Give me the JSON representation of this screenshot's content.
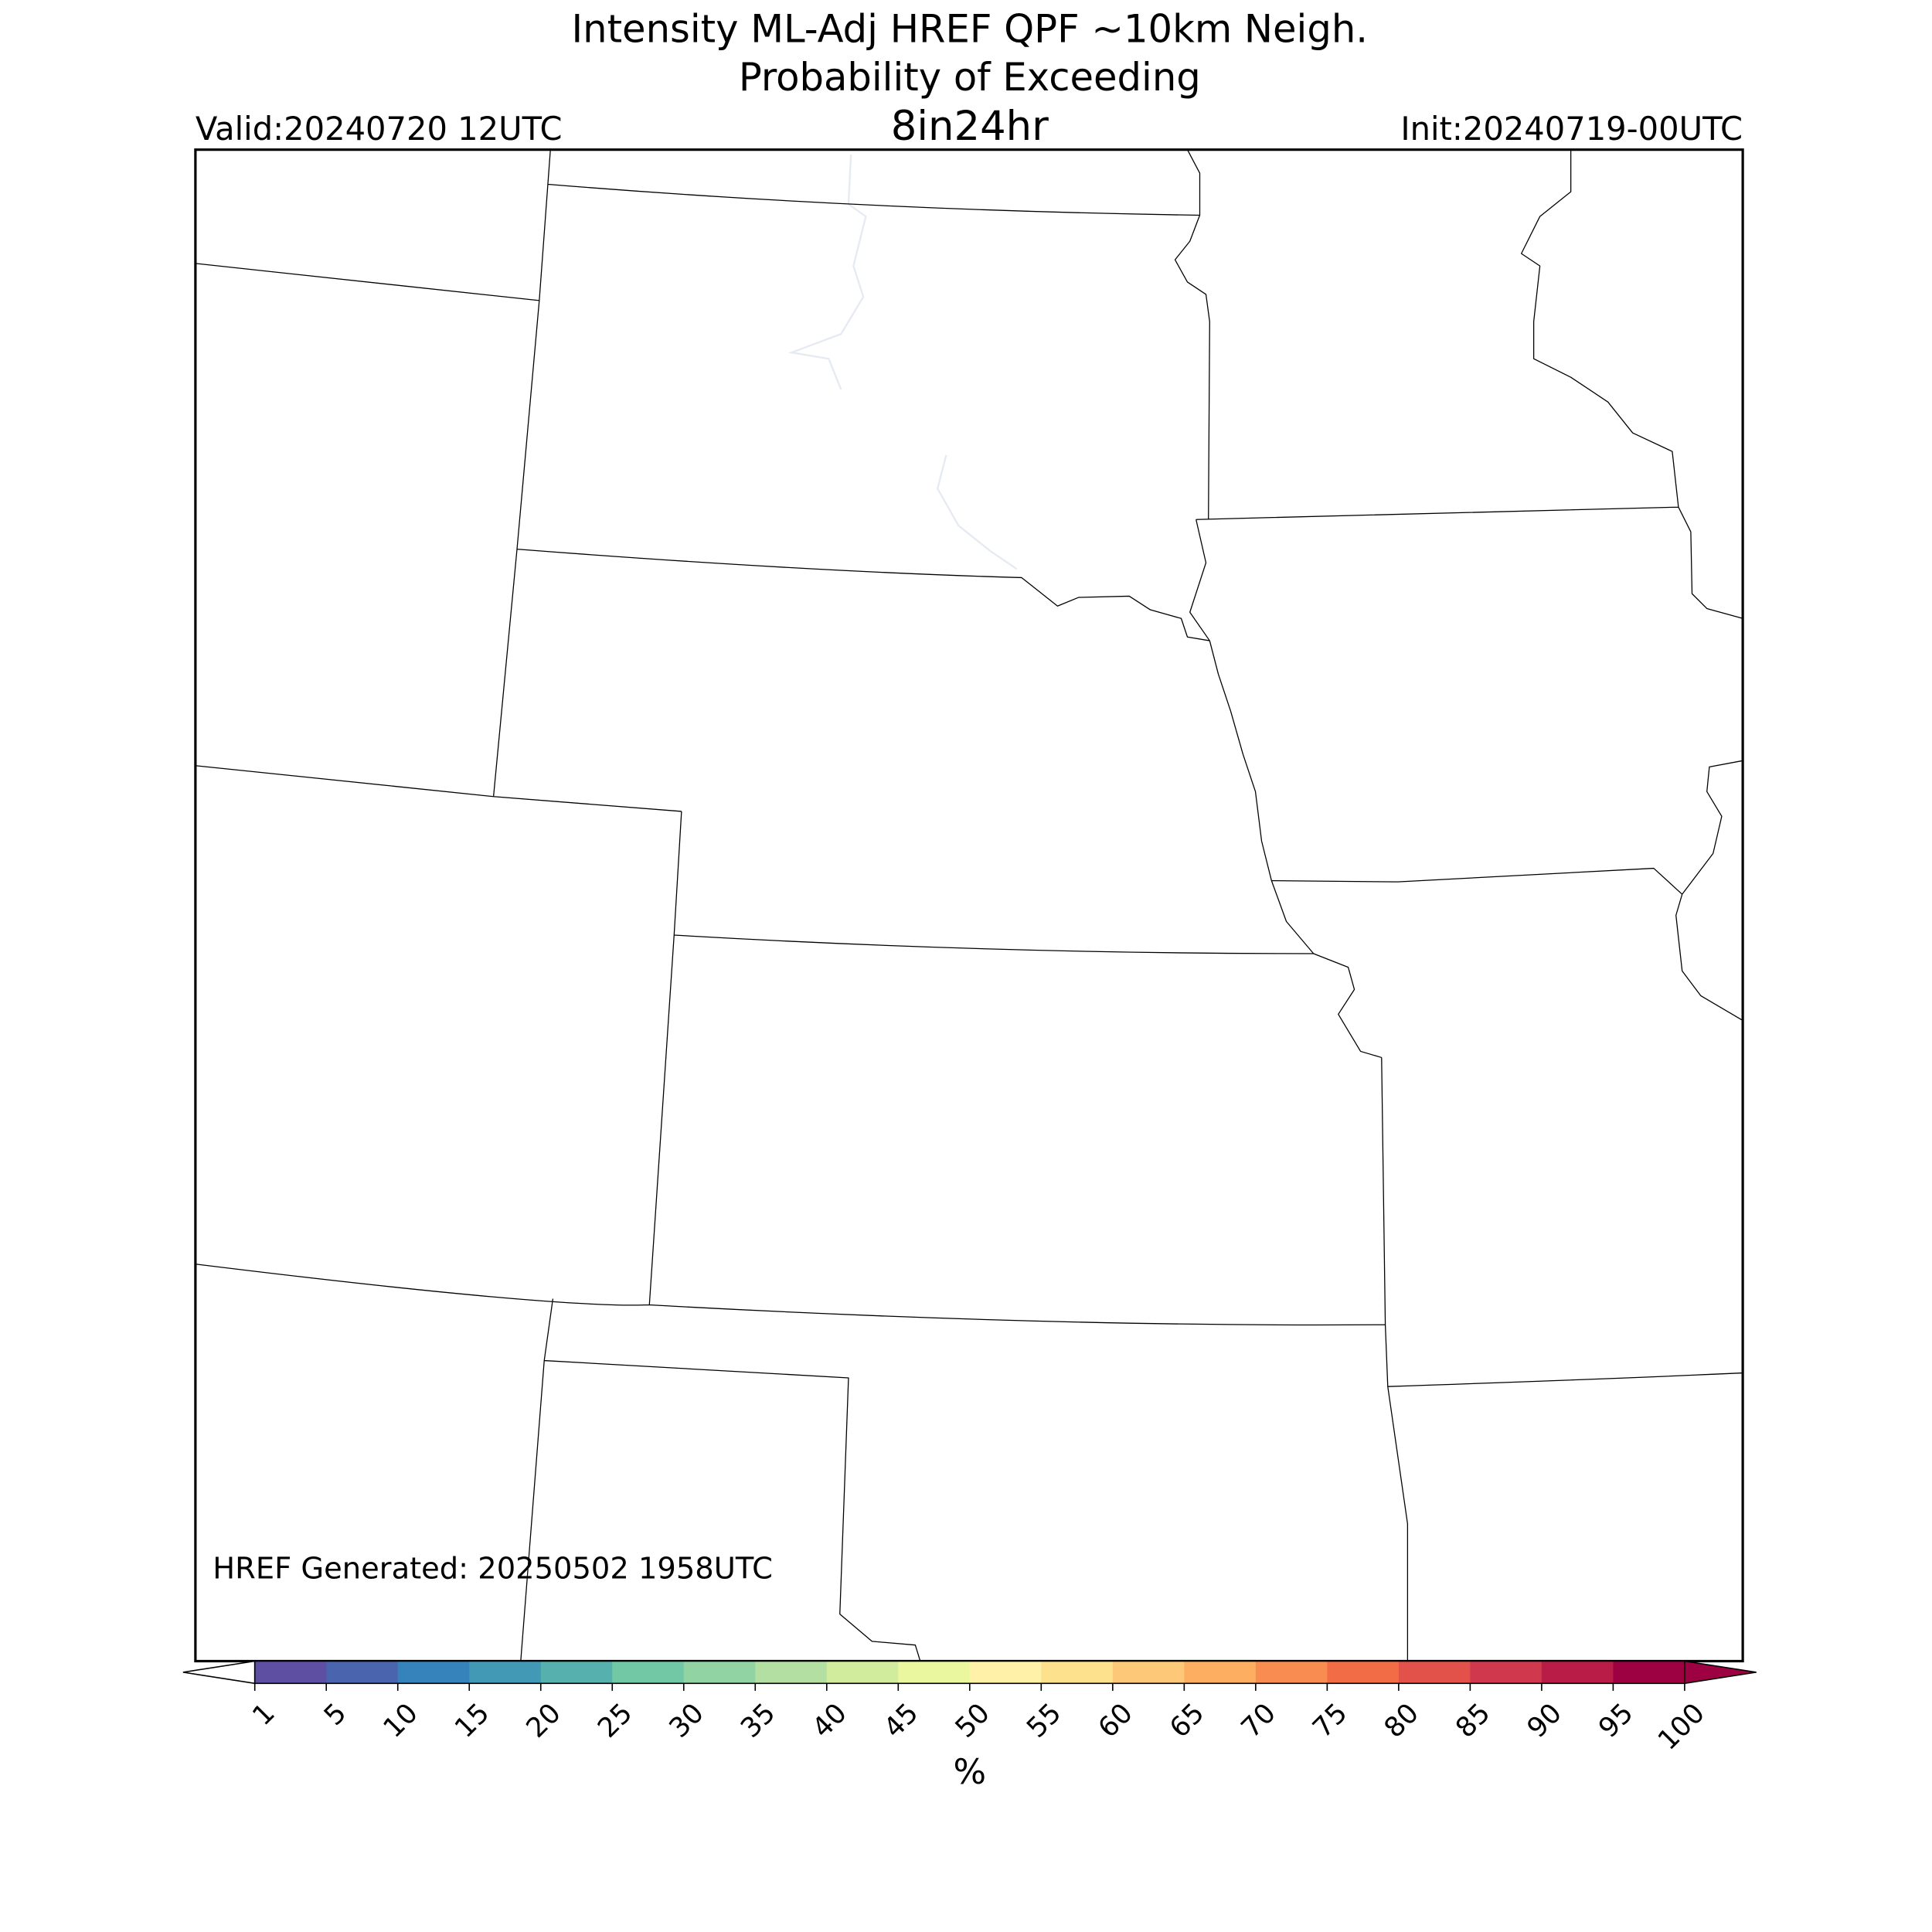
{
  "header": {
    "title_line1": "Intensity ML-Adj HREF QPF ~10km Neigh.",
    "title_line2": "Probability of Exceeding",
    "threshold": "8in24hr",
    "valid": "Valid:20240720 12UTC",
    "init": "Init:20240719-00UTC"
  },
  "map": {
    "footnote": "HREF Generated: 20250502 1958UTC"
  },
  "colorbar": {
    "label": "%",
    "ticks": [
      1,
      5,
      10,
      15,
      20,
      25,
      30,
      35,
      40,
      45,
      50,
      55,
      60,
      65,
      70,
      75,
      80,
      85,
      90,
      95,
      100
    ],
    "colors": [
      "#5e4fa2",
      "#4a64ad",
      "#3682ba",
      "#4199b6",
      "#56b0ad",
      "#72c7a5",
      "#92d3a4",
      "#b3e0a2",
      "#d0ec9c",
      "#eaf79e",
      "#fff1a8",
      "#fee18d",
      "#fdc877",
      "#fdae61",
      "#f88c51",
      "#f26c45",
      "#e2514a",
      "#d0384e",
      "#b91d47",
      "#9e0142"
    ],
    "under_color": "#ffffff",
    "over_color": "#9e0142"
  }
}
